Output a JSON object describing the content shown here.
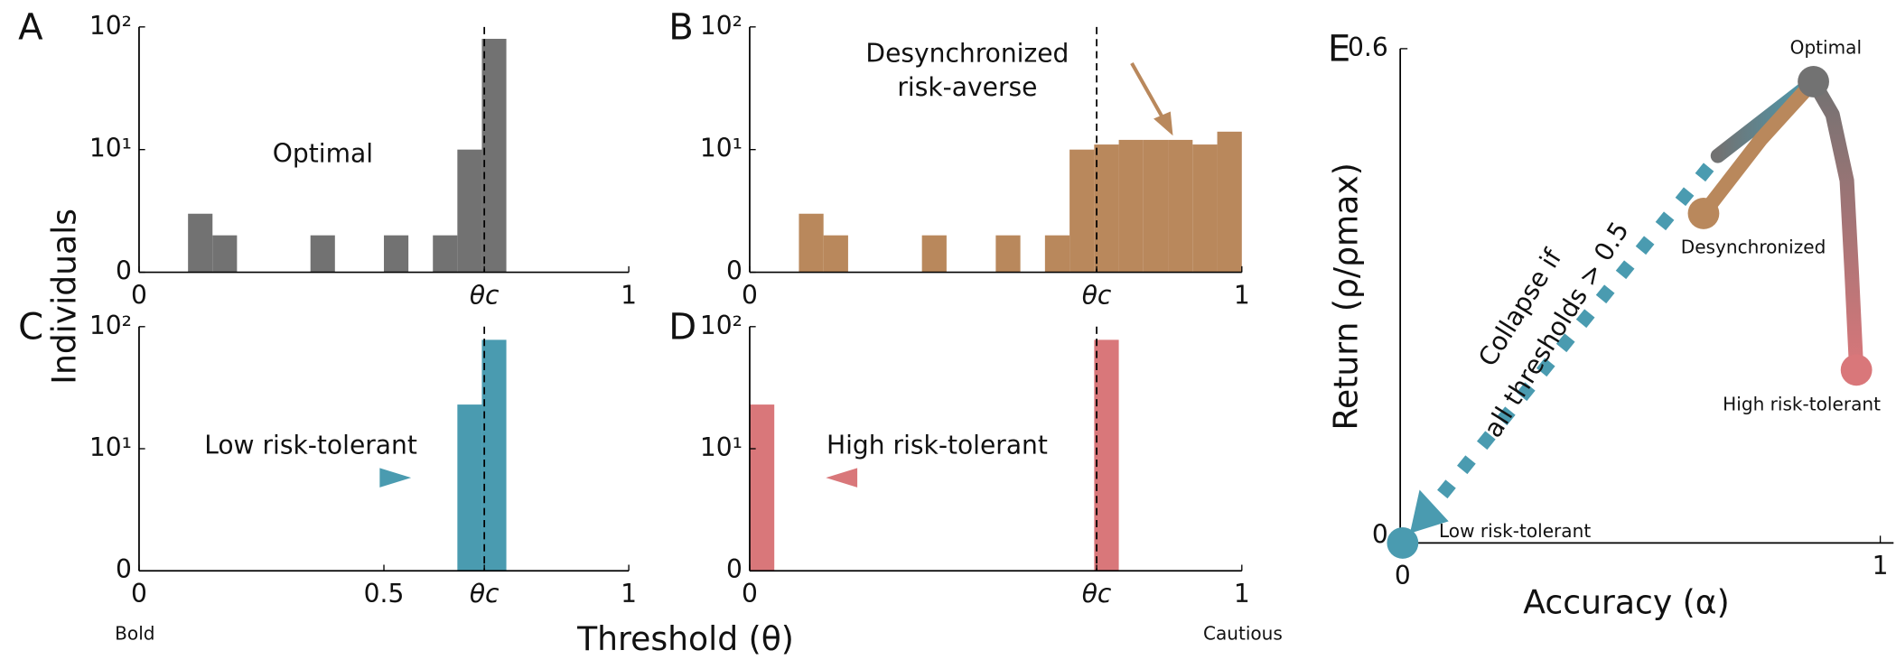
{
  "figure": {
    "y_label": "Individuals",
    "x_label": "Threshold (θ)",
    "left_note": "Bold",
    "right_note": "Cautious"
  },
  "chart_data": [
    {
      "type": "histogram",
      "panel": "A",
      "color": "#727272",
      "log_y": true,
      "bins": [
        0,
        0.05,
        0.1,
        0.15,
        0.2,
        0.25,
        0.3,
        0.35,
        0.4,
        0.45,
        0.5,
        0.55,
        0.6,
        0.65,
        0.7,
        0.75,
        0.8,
        0.85,
        0.9,
        0.95,
        1
      ],
      "counts": [
        0,
        0,
        3,
        2,
        0,
        0,
        0,
        2,
        0,
        0,
        2,
        0,
        2,
        10,
        80,
        0,
        0,
        0,
        0,
        0
      ],
      "xlim": [
        0,
        1
      ],
      "xticks": [
        0,
        {
          "value": 0.705,
          "label": "θc"
        },
        1
      ],
      "ylim": [
        1,
        100
      ],
      "yticks": [
        {
          "value": 1,
          "label": "0"
        },
        {
          "value": 10,
          "label": "10¹"
        },
        {
          "value": 100,
          "label": "10²"
        }
      ],
      "annotation": [
        "Optimal"
      ]
    },
    {
      "type": "histogram",
      "panel": "B",
      "color": "#b9885c",
      "log_y": true,
      "bins": [
        0,
        0.05,
        0.1,
        0.15,
        0.2,
        0.25,
        0.3,
        0.35,
        0.4,
        0.45,
        0.5,
        0.55,
        0.6,
        0.65,
        0.7,
        0.75,
        0.8,
        0.85,
        0.9,
        0.95,
        1
      ],
      "counts": [
        0,
        0,
        3,
        2,
        0,
        0,
        0,
        2,
        0,
        0,
        2,
        0,
        2,
        10,
        11,
        12,
        12,
        12,
        11,
        14
      ],
      "xlim": [
        0,
        1
      ],
      "xticks": [
        0,
        {
          "value": 0.705,
          "label": "θc"
        },
        1
      ],
      "ylim": [
        1,
        100
      ],
      "yticks": [
        {
          "value": 1,
          "label": "0"
        },
        {
          "value": 10,
          "label": "10¹"
        },
        {
          "value": 100,
          "label": "10²"
        }
      ],
      "annotation": [
        "Desynchronized",
        "risk-averse"
      ]
    },
    {
      "type": "histogram",
      "panel": "C",
      "color": "#4a9bb0",
      "log_y": true,
      "bins": [
        0,
        0.05,
        0.1,
        0.15,
        0.2,
        0.25,
        0.3,
        0.35,
        0.4,
        0.45,
        0.5,
        0.55,
        0.6,
        0.65,
        0.7,
        0.75,
        0.8,
        0.85,
        0.9,
        0.95,
        1
      ],
      "counts": [
        0,
        0,
        0,
        0,
        0,
        0,
        0,
        0,
        0,
        0,
        0,
        0,
        0,
        23,
        78,
        0,
        0,
        0,
        0,
        0
      ],
      "xlim": [
        0,
        1
      ],
      "xticks": [
        0,
        0.5,
        {
          "value": 0.705,
          "label": "θc"
        },
        1
      ],
      "ylim": [
        1,
        100
      ],
      "yticks": [
        {
          "value": 1,
          "label": "0"
        },
        {
          "value": 10,
          "label": "10¹"
        },
        {
          "value": 100,
          "label": "10²"
        }
      ],
      "annotation": [
        "Low risk-tolerant"
      ]
    },
    {
      "type": "histogram",
      "panel": "D",
      "color": "#d9777a",
      "log_y": true,
      "bins": [
        0,
        0.05,
        0.1,
        0.15,
        0.2,
        0.25,
        0.3,
        0.35,
        0.4,
        0.45,
        0.5,
        0.55,
        0.6,
        0.65,
        0.7,
        0.75,
        0.8,
        0.85,
        0.9,
        0.95,
        1
      ],
      "counts": [
        23,
        0,
        0,
        0,
        0,
        0,
        0,
        0,
        0,
        0,
        0,
        0,
        0,
        0,
        78,
        0,
        0,
        0,
        0,
        0
      ],
      "xlim": [
        0,
        1
      ],
      "xticks": [
        0,
        {
          "value": 0.705,
          "label": "θc"
        },
        1
      ],
      "ylim": [
        1,
        100
      ],
      "yticks": [
        {
          "value": 1,
          "label": "0"
        },
        {
          "value": 10,
          "label": "10¹"
        },
        {
          "value": 100,
          "label": "10²"
        }
      ],
      "annotation": [
        "High risk-tolerant"
      ]
    },
    {
      "type": "line",
      "panel": "E",
      "x_label": "Accuracy (α)",
      "y_label": "Return (ρ/ρmax)",
      "xlim": [
        0,
        1
      ],
      "xticks": [
        0,
        1
      ],
      "ylim": [
        0,
        0.6
      ],
      "yticks": [
        0,
        0.6
      ],
      "series": [
        {
          "color": "#4a9bb0",
          "style": "dotted",
          "x": [
            0,
            0.66
          ],
          "y": [
            0,
            0.47
          ]
        },
        {
          "color": "#4a9bb0",
          "style": "solid",
          "x": [
            0.66,
            0.86
          ],
          "y": [
            0.47,
            0.56
          ]
        },
        {
          "color": "#b9885c",
          "style": "solid",
          "x": [
            0.63,
            0.75,
            0.86
          ],
          "y": [
            0.4,
            0.49,
            0.56
          ]
        },
        {
          "color": "#d9777a",
          "style": "solid",
          "x": [
            0.86,
            0.9,
            0.93,
            0.94,
            0.95
          ],
          "y": [
            0.56,
            0.52,
            0.44,
            0.33,
            0.21
          ]
        }
      ],
      "points": [
        {
          "label": "Optimal",
          "x": 0.86,
          "y": 0.56,
          "color": "#727272"
        },
        {
          "label": "Desynchronized",
          "x": 0.63,
          "y": 0.4,
          "color": "#b9885c"
        },
        {
          "label": "High risk-tolerant",
          "x": 0.95,
          "y": 0.21,
          "color": "#d9777a"
        },
        {
          "label": "Low risk-tolerant",
          "x": 0,
          "y": 0,
          "color": "#4a9bb0"
        }
      ],
      "annotation": [
        "Collapse if",
        "all thresholds > 0.5"
      ]
    }
  ]
}
